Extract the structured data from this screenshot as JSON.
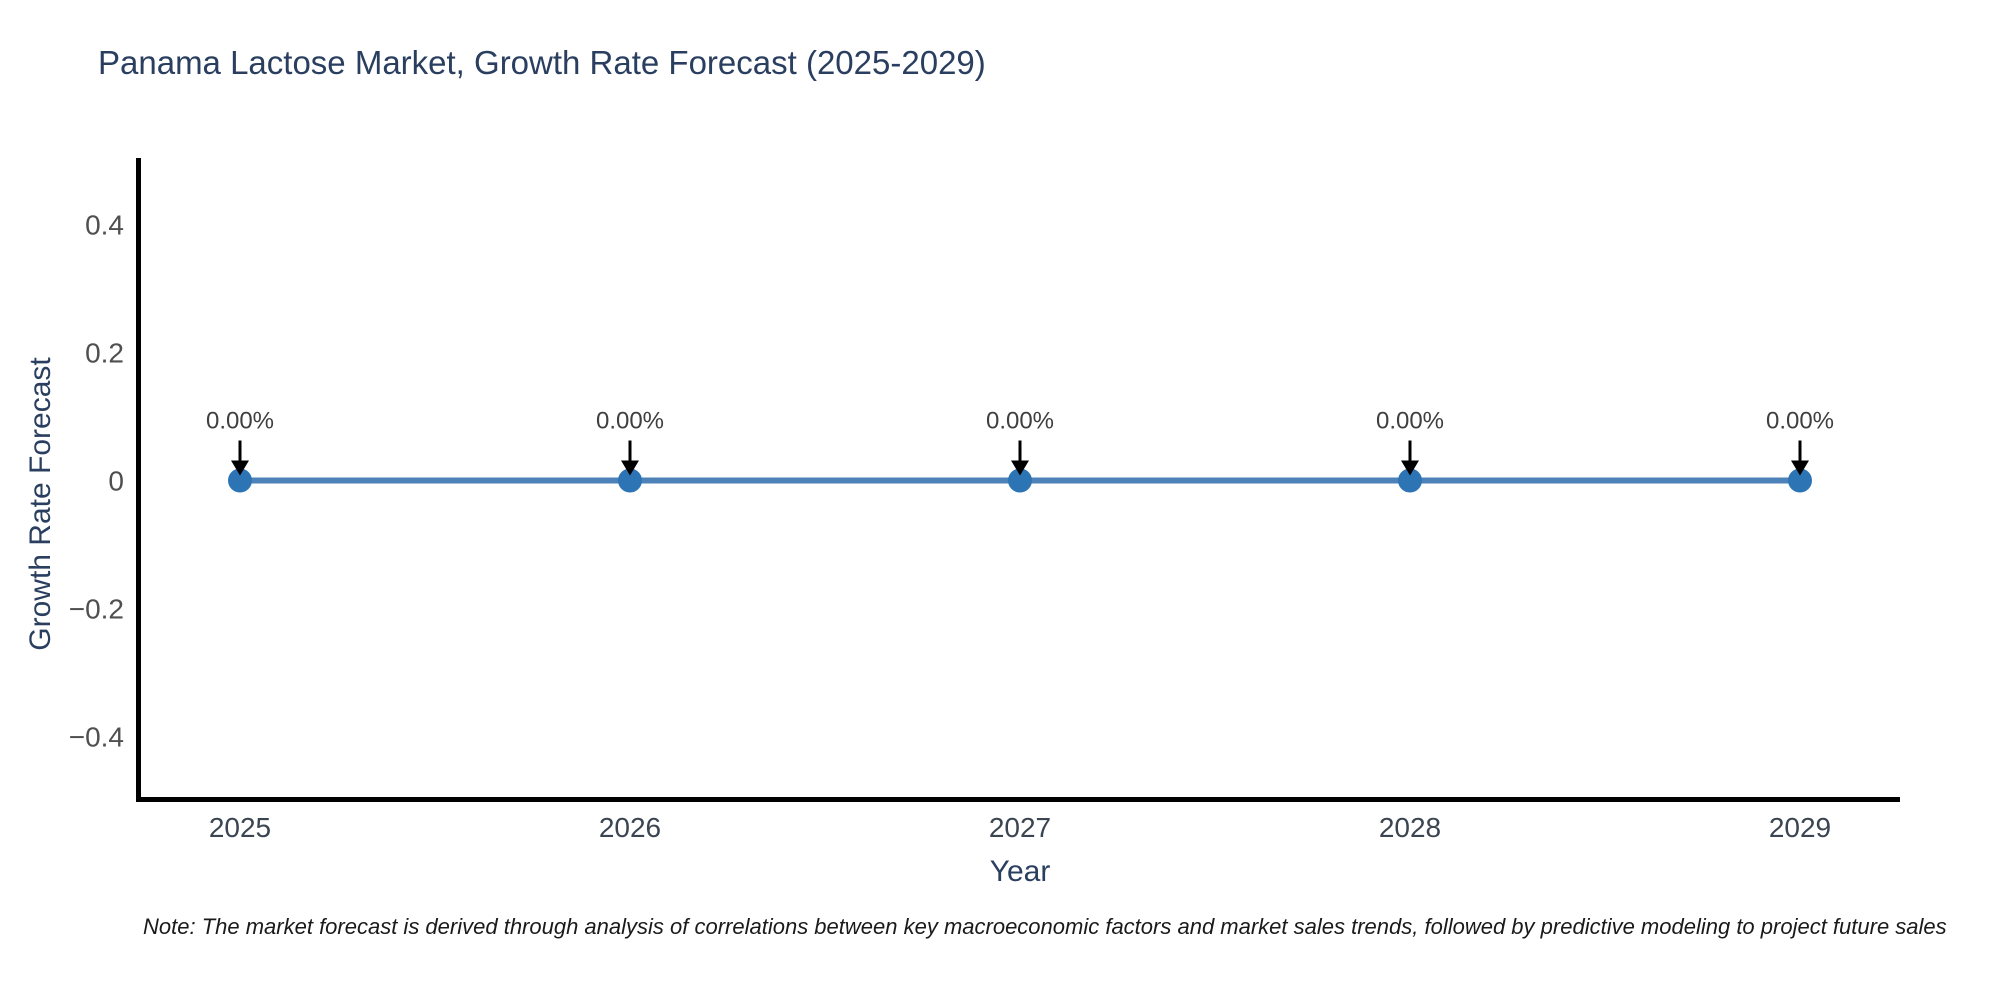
{
  "note": "Note: The market forecast is derived through analysis of correlations between key macroeconomic factors and market sales trends, followed by predictive modeling to project future sales",
  "chart_data": {
    "type": "line",
    "title": "Panama Lactose Market, Growth Rate Forecast (2025-2029)",
    "xlabel": "Year",
    "ylabel": "Growth Rate Forecast",
    "x": [
      2025,
      2026,
      2027,
      2028,
      2029
    ],
    "values": [
      0,
      0,
      0,
      0,
      0
    ],
    "data_labels": [
      "0.00%",
      "0.00%",
      "0.00%",
      "0.00%",
      "0.00%"
    ],
    "yticks": {
      "values": [
        0.4,
        0.2,
        0,
        -0.2,
        -0.4
      ],
      "labels": [
        "0.4",
        "0.2",
        "0",
        "−0.2",
        "−0.4"
      ]
    },
    "ylim": [
      -0.5,
      0.5
    ],
    "grid": false,
    "legend": null,
    "colors": {
      "line": "#4d82b8",
      "marker": "#2d74b5",
      "arrow": "#000000",
      "axis": "#000000",
      "title": "#2a3f5f",
      "x_tick": "#3b4551",
      "y_tick": "#4f4f4f",
      "annotation": "#3f3f3f"
    }
  }
}
